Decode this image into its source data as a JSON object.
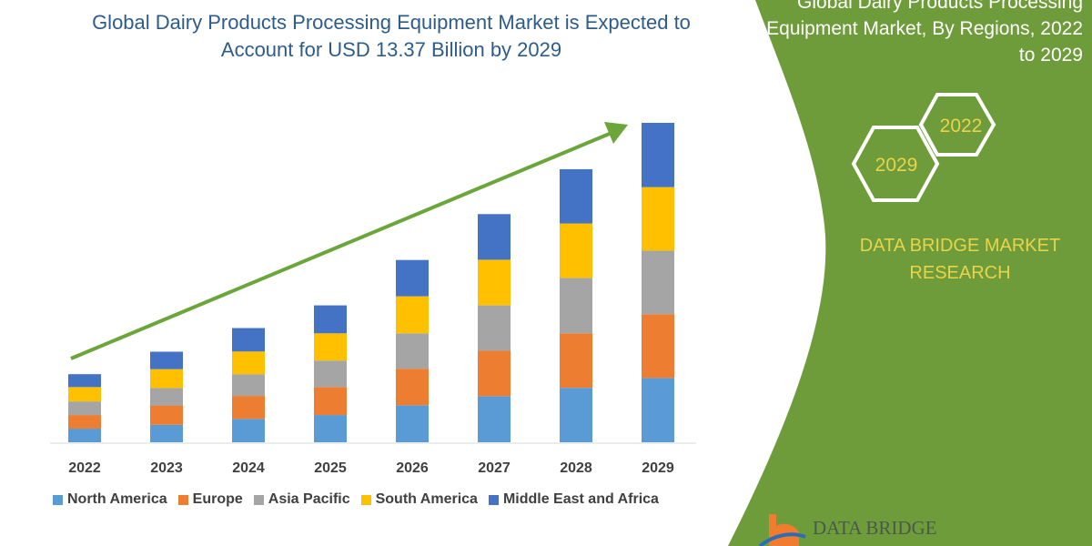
{
  "chart_data": {
    "type": "bar",
    "stacked": true,
    "title": "Global Dairy Products Processing Equipment Market is Expected to Account for USD 13.37 Billion by 2029",
    "xlabel": "",
    "ylabel": "",
    "categories": [
      "2022",
      "2023",
      "2024",
      "2025",
      "2026",
      "2027",
      "2028",
      "2029"
    ],
    "series": [
      {
        "name": "North America",
        "color": "#5b9bd5",
        "values": [
          0.57,
          0.73,
          0.98,
          1.14,
          1.55,
          1.93,
          2.28,
          2.69
        ]
      },
      {
        "name": "Europe",
        "color": "#ed7d31",
        "values": [
          0.57,
          0.81,
          0.96,
          1.17,
          1.53,
          1.9,
          2.28,
          2.67
        ]
      },
      {
        "name": "Asia Pacific",
        "color": "#a5a5a5",
        "values": [
          0.57,
          0.73,
          0.91,
          1.11,
          1.48,
          1.9,
          2.32,
          2.66
        ]
      },
      {
        "name": "South America",
        "color": "#ffc000",
        "values": [
          0.6,
          0.79,
          0.95,
          1.14,
          1.55,
          1.91,
          2.28,
          2.66
        ]
      },
      {
        "name": "Middle East and Africa",
        "color": "#4472c4",
        "values": [
          0.54,
          0.73,
          0.98,
          1.17,
          1.52,
          1.91,
          2.27,
          2.69
        ]
      }
    ],
    "ylim": [
      0,
      13.37
    ],
    "grid": false,
    "legend_position": "bottom",
    "trend_arrow_color": "#6aa63a"
  },
  "side_panel": {
    "title": "Global Dairy Products Processing Equipment Market, By Regions, 2022 to 2029",
    "hex_1": "2022",
    "hex_2": "2029",
    "brand": "DATA BRIDGE MARKET RESEARCH",
    "color": "#6f9c3a",
    "logo_text": "DATA BRIDGE"
  }
}
